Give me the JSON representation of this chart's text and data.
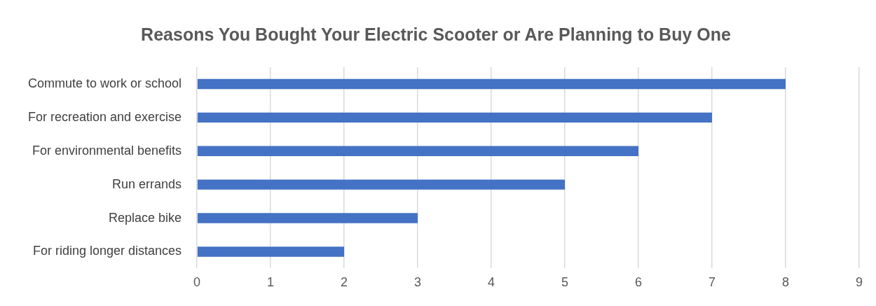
{
  "chart_data": {
    "type": "bar",
    "title": "Reasons You Bought Your Electric Scooter or Are Planning to Buy One",
    "orientation": "horizontal",
    "categories": [
      "Commute to work or school",
      "For recreation and exercise",
      "For environmental benefits",
      "Run errands",
      "Replace bike",
      "For riding longer distances"
    ],
    "values": [
      8,
      7,
      6,
      5,
      3,
      2
    ],
    "color": "#4472c4",
    "xlim": [
      0,
      9
    ],
    "xticks": [
      0,
      1,
      2,
      3,
      4,
      5,
      6,
      7,
      8,
      9
    ],
    "grid": "x",
    "legend": false
  }
}
